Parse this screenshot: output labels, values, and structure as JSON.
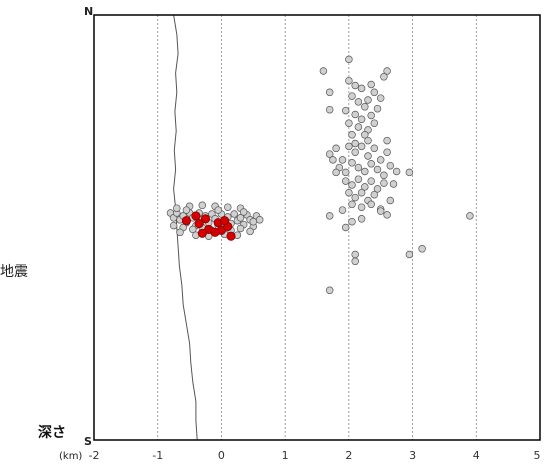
{
  "chart_data": {
    "type": "scatter",
    "xlabel_unit": "(km)",
    "ylabel": "深さ",
    "left_label_partial": "地震",
    "corner_top": "N",
    "corner_bottom": "S",
    "xlim": [
      -2,
      5
    ],
    "xticks": [
      -2,
      -1,
      0,
      1,
      2,
      3,
      4,
      5
    ],
    "grid": "vertical dotted lines at each integer km",
    "colors": {
      "recent": "#d40000",
      "past": "#d0d0d0",
      "outline": "#555555",
      "coast": "#555555",
      "frame": "#000000",
      "grid": "#888888"
    },
    "ylim": [
      0,
      440
    ],
    "coastline": [
      [
        -0.75,
        0
      ],
      [
        -0.7,
        20
      ],
      [
        -0.68,
        40
      ],
      [
        -0.72,
        60
      ],
      [
        -0.7,
        80
      ],
      [
        -0.73,
        100
      ],
      [
        -0.71,
        120
      ],
      [
        -0.74,
        140
      ],
      [
        -0.72,
        160
      ],
      [
        -0.75,
        180
      ],
      [
        -0.72,
        200
      ],
      [
        -0.7,
        220
      ],
      [
        -0.68,
        240
      ],
      [
        -0.66,
        260
      ],
      [
        -0.62,
        280
      ],
      [
        -0.6,
        300
      ],
      [
        -0.55,
        320
      ],
      [
        -0.5,
        340
      ],
      [
        -0.48,
        360
      ],
      [
        -0.45,
        380
      ],
      [
        -0.4,
        400
      ],
      [
        -0.4,
        420
      ],
      [
        -0.38,
        440
      ]
    ],
    "series": [
      {
        "name": "",
        "color": "past",
        "points": [
          [
            -0.8,
            205
          ],
          [
            -0.75,
            210
          ],
          [
            -0.7,
            205
          ],
          [
            -0.65,
            212
          ],
          [
            -0.6,
            208
          ],
          [
            -0.55,
            215
          ],
          [
            -0.5,
            205
          ],
          [
            -0.45,
            210
          ],
          [
            -0.4,
            218
          ],
          [
            -0.35,
            205
          ],
          [
            -0.3,
            212
          ],
          [
            -0.25,
            208
          ],
          [
            -0.2,
            215
          ],
          [
            -0.15,
            206
          ],
          [
            -0.1,
            211
          ],
          [
            -0.05,
            218
          ],
          [
            0,
            206
          ],
          [
            0.05,
            212
          ],
          [
            0.1,
            209
          ],
          [
            0.15,
            216
          ],
          [
            0.2,
            206
          ],
          [
            0.25,
            213
          ],
          [
            0.3,
            210
          ],
          [
            0.35,
            217
          ],
          [
            0.4,
            207
          ],
          [
            0.45,
            212
          ],
          [
            0.5,
            219
          ],
          [
            0.55,
            208
          ],
          [
            -0.75,
            218
          ],
          [
            -0.6,
            220
          ],
          [
            -0.45,
            222
          ],
          [
            -0.3,
            220
          ],
          [
            -0.15,
            223
          ],
          [
            0,
            221
          ],
          [
            0.15,
            223
          ],
          [
            0.3,
            221
          ],
          [
            0.45,
            224
          ],
          [
            -0.7,
            200
          ],
          [
            -0.5,
            198
          ],
          [
            -0.3,
            197
          ],
          [
            -0.1,
            198
          ],
          [
            0.1,
            199
          ],
          [
            0.3,
            200
          ],
          [
            -0.65,
            225
          ],
          [
            -0.4,
            228
          ],
          [
            -0.2,
            229
          ],
          [
            0.05,
            227
          ],
          [
            0.25,
            228
          ],
          [
            0.6,
            212
          ],
          [
            -0.55,
            202
          ],
          [
            -0.05,
            202
          ],
          [
            0.35,
            204
          ],
          [
            0.5,
            214
          ],
          [
            1.6,
            58
          ],
          [
            2.0,
            46
          ],
          [
            2.6,
            58
          ],
          [
            2.55,
            64
          ],
          [
            1.7,
            80
          ],
          [
            2.0,
            68
          ],
          [
            2.1,
            73
          ],
          [
            2.2,
            76
          ],
          [
            2.35,
            72
          ],
          [
            2.4,
            80
          ],
          [
            2.5,
            86
          ],
          [
            1.7,
            98
          ],
          [
            2.05,
            84
          ],
          [
            2.15,
            90
          ],
          [
            2.25,
            95
          ],
          [
            2.3,
            88
          ],
          [
            1.95,
            99
          ],
          [
            2.1,
            103
          ],
          [
            2.2,
            108
          ],
          [
            2.35,
            104
          ],
          [
            2.45,
            97
          ],
          [
            2.0,
            112
          ],
          [
            2.15,
            116
          ],
          [
            2.3,
            119
          ],
          [
            2.4,
            112
          ],
          [
            2.25,
            124
          ],
          [
            2.05,
            124
          ],
          [
            1.7,
            144
          ],
          [
            1.8,
            138
          ],
          [
            1.9,
            150
          ],
          [
            2.0,
            136
          ],
          [
            2.1,
            142
          ],
          [
            2.2,
            136
          ],
          [
            2.3,
            146
          ],
          [
            2.4,
            138
          ],
          [
            2.5,
            150
          ],
          [
            2.6,
            142
          ],
          [
            1.85,
            158
          ],
          [
            1.95,
            163
          ],
          [
            2.05,
            153
          ],
          [
            2.15,
            158
          ],
          [
            2.25,
            162
          ],
          [
            2.35,
            154
          ],
          [
            2.45,
            160
          ],
          [
            2.55,
            166
          ],
          [
            2.65,
            156
          ],
          [
            2.75,
            162
          ],
          [
            1.95,
            172
          ],
          [
            2.05,
            176
          ],
          [
            2.15,
            170
          ],
          [
            2.25,
            178
          ],
          [
            2.35,
            172
          ],
          [
            2.45,
            180
          ],
          [
            2.55,
            174
          ],
          [
            2.0,
            184
          ],
          [
            2.1,
            189
          ],
          [
            2.2,
            184
          ],
          [
            2.3,
            192
          ],
          [
            2.4,
            186
          ],
          [
            2.05,
            196
          ],
          [
            2.2,
            199
          ],
          [
            2.35,
            196
          ],
          [
            2.5,
            201
          ],
          [
            2.65,
            192
          ],
          [
            2.95,
            163
          ],
          [
            2.7,
            175
          ],
          [
            1.8,
            163
          ],
          [
            1.75,
            150
          ],
          [
            2.6,
            130
          ],
          [
            2.1,
            133
          ],
          [
            2.3,
            130
          ],
          [
            2.5,
            203
          ],
          [
            2.6,
            207
          ],
          [
            1.7,
            208
          ],
          [
            1.9,
            202
          ],
          [
            2.2,
            211
          ],
          [
            2.05,
            214
          ],
          [
            1.95,
            220
          ],
          [
            2.1,
            248
          ],
          [
            2.1,
            255
          ],
          [
            2.95,
            248
          ],
          [
            3.15,
            242
          ],
          [
            3.9,
            208
          ],
          [
            1.7,
            285
          ]
        ]
      },
      {
        "name": "",
        "color": "recent",
        "points": [
          [
            -0.55,
            213
          ],
          [
            -0.4,
            208
          ],
          [
            -0.25,
            211
          ],
          [
            -0.2,
            222
          ],
          [
            -0.05,
            215
          ],
          [
            0.0,
            223
          ],
          [
            -0.3,
            226
          ],
          [
            0.1,
            219
          ],
          [
            0.15,
            229
          ],
          [
            -0.1,
            225
          ],
          [
            -0.35,
            216
          ],
          [
            0.05,
            213
          ]
        ]
      }
    ]
  }
}
